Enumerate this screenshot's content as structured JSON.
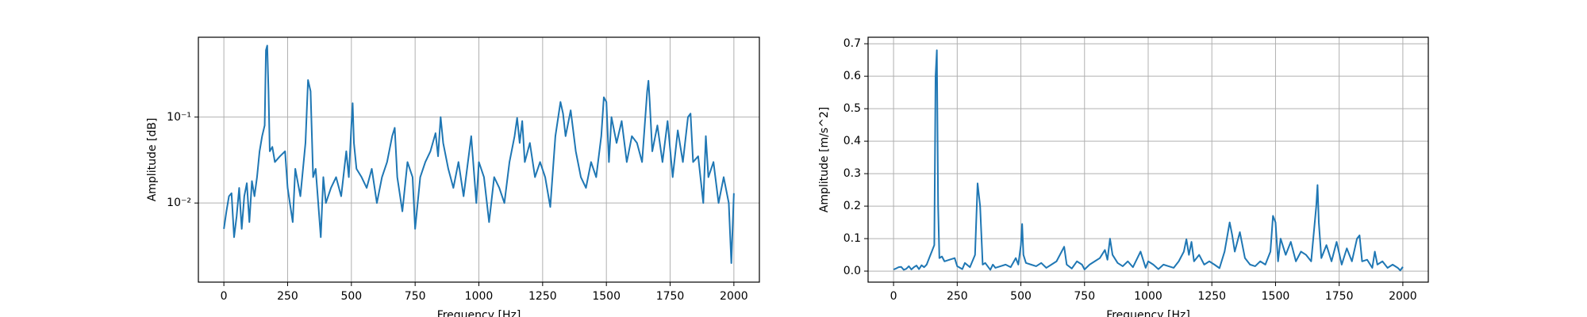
{
  "chart_data": [
    {
      "type": "line",
      "xlabel": "Frequency [Hz]",
      "ylabel": "Amplitude [dB]",
      "log_y": true,
      "grid": true,
      "xlim": [
        -100,
        2100
      ],
      "ylim": [
        0.0012,
        0.85
      ],
      "xticks": [
        0,
        250,
        500,
        750,
        1000,
        1250,
        1500,
        1750,
        2000
      ],
      "yticks": [
        {
          "value": 0.01,
          "label": "10⁻²"
        },
        {
          "value": 0.1,
          "label": "10⁻¹"
        }
      ],
      "series": [
        {
          "color": "#1f77b4",
          "x": [
            0,
            10,
            20,
            30,
            40,
            50,
            60,
            70,
            80,
            90,
            100,
            110,
            120,
            130,
            140,
            150,
            160,
            165,
            170,
            175,
            180,
            190,
            200,
            220,
            240,
            250,
            270,
            280,
            300,
            320,
            330,
            340,
            350,
            360,
            380,
            390,
            400,
            420,
            440,
            460,
            480,
            490,
            500,
            505,
            510,
            520,
            540,
            560,
            580,
            600,
            620,
            640,
            660,
            670,
            680,
            700,
            720,
            740,
            750,
            770,
            790,
            810,
            830,
            840,
            850,
            860,
            880,
            900,
            920,
            940,
            970,
            990,
            1000,
            1020,
            1040,
            1060,
            1080,
            1100,
            1120,
            1140,
            1150,
            1160,
            1170,
            1180,
            1200,
            1220,
            1240,
            1260,
            1280,
            1300,
            1320,
            1330,
            1340,
            1360,
            1380,
            1400,
            1420,
            1440,
            1460,
            1480,
            1490,
            1500,
            1510,
            1520,
            1540,
            1560,
            1580,
            1600,
            1620,
            1640,
            1660,
            1665,
            1670,
            1680,
            1700,
            1720,
            1740,
            1760,
            1780,
            1800,
            1820,
            1830,
            1840,
            1860,
            1880,
            1890,
            1900,
            1920,
            1940,
            1960,
            1980,
            1990,
            2000
          ],
          "values": [
            0.005,
            0.008,
            0.012,
            0.013,
            0.004,
            0.007,
            0.015,
            0.005,
            0.012,
            0.017,
            0.006,
            0.018,
            0.012,
            0.02,
            0.04,
            0.06,
            0.08,
            0.6,
            0.68,
            0.2,
            0.04,
            0.045,
            0.03,
            0.035,
            0.04,
            0.015,
            0.006,
            0.025,
            0.012,
            0.05,
            0.27,
            0.2,
            0.02,
            0.025,
            0.004,
            0.02,
            0.01,
            0.015,
            0.02,
            0.012,
            0.04,
            0.02,
            0.08,
            0.145,
            0.05,
            0.025,
            0.02,
            0.015,
            0.025,
            0.01,
            0.02,
            0.03,
            0.06,
            0.075,
            0.02,
            0.008,
            0.03,
            0.02,
            0.005,
            0.02,
            0.03,
            0.04,
            0.065,
            0.035,
            0.1,
            0.05,
            0.025,
            0.015,
            0.03,
            0.012,
            0.06,
            0.01,
            0.03,
            0.02,
            0.006,
            0.02,
            0.015,
            0.01,
            0.03,
            0.06,
            0.098,
            0.05,
            0.09,
            0.03,
            0.05,
            0.02,
            0.03,
            0.02,
            0.009,
            0.06,
            0.15,
            0.11,
            0.06,
            0.12,
            0.04,
            0.02,
            0.015,
            0.03,
            0.02,
            0.06,
            0.17,
            0.15,
            0.03,
            0.1,
            0.05,
            0.09,
            0.03,
            0.06,
            0.05,
            0.03,
            0.2,
            0.265,
            0.15,
            0.04,
            0.08,
            0.03,
            0.09,
            0.02,
            0.07,
            0.03,
            0.1,
            0.11,
            0.03,
            0.035,
            0.01,
            0.06,
            0.02,
            0.03,
            0.01,
            0.02,
            0.01,
            0.002,
            0.013
          ]
        }
      ]
    },
    {
      "type": "line",
      "xlabel": "Frequency [Hz]",
      "ylabel": "Amplitude [m/s^2]",
      "log_y": false,
      "grid": true,
      "xlim": [
        -100,
        2100
      ],
      "ylim": [
        -0.034,
        0.72
      ],
      "xticks": [
        0,
        250,
        500,
        750,
        1000,
        1250,
        1500,
        1750,
        2000
      ],
      "yticks": [
        {
          "value": 0,
          "label": "0.0"
        },
        0.1,
        0.2,
        0.3,
        0.4,
        0.5,
        0.6,
        0.7
      ],
      "series": [
        {
          "color": "#1f77b4",
          "x": [
            0,
            10,
            20,
            30,
            40,
            50,
            60,
            70,
            80,
            90,
            100,
            110,
            120,
            130,
            140,
            150,
            160,
            165,
            170,
            175,
            180,
            190,
            200,
            220,
            240,
            250,
            270,
            280,
            300,
            320,
            330,
            340,
            350,
            360,
            380,
            390,
            400,
            420,
            440,
            460,
            480,
            490,
            500,
            505,
            510,
            520,
            540,
            560,
            580,
            600,
            620,
            640,
            660,
            670,
            680,
            700,
            720,
            740,
            750,
            770,
            790,
            810,
            830,
            840,
            850,
            860,
            880,
            900,
            920,
            940,
            970,
            990,
            1000,
            1020,
            1040,
            1060,
            1080,
            1100,
            1120,
            1140,
            1150,
            1160,
            1170,
            1180,
            1200,
            1220,
            1240,
            1260,
            1280,
            1300,
            1320,
            1330,
            1340,
            1360,
            1380,
            1400,
            1420,
            1440,
            1460,
            1480,
            1490,
            1500,
            1510,
            1520,
            1540,
            1560,
            1580,
            1600,
            1620,
            1640,
            1660,
            1665,
            1670,
            1680,
            1700,
            1720,
            1740,
            1760,
            1780,
            1800,
            1820,
            1830,
            1840,
            1860,
            1880,
            1890,
            1900,
            1920,
            1940,
            1960,
            1980,
            1990,
            2000
          ],
          "values": [
            0.005,
            0.008,
            0.012,
            0.013,
            0.004,
            0.007,
            0.015,
            0.005,
            0.012,
            0.017,
            0.006,
            0.018,
            0.012,
            0.02,
            0.04,
            0.06,
            0.08,
            0.6,
            0.68,
            0.2,
            0.04,
            0.045,
            0.03,
            0.035,
            0.04,
            0.015,
            0.006,
            0.025,
            0.012,
            0.05,
            0.27,
            0.2,
            0.02,
            0.025,
            0.004,
            0.02,
            0.01,
            0.015,
            0.02,
            0.012,
            0.04,
            0.02,
            0.08,
            0.145,
            0.05,
            0.025,
            0.02,
            0.015,
            0.025,
            0.01,
            0.02,
            0.03,
            0.06,
            0.075,
            0.02,
            0.008,
            0.03,
            0.02,
            0.005,
            0.02,
            0.03,
            0.04,
            0.065,
            0.035,
            0.1,
            0.05,
            0.025,
            0.015,
            0.03,
            0.012,
            0.06,
            0.01,
            0.03,
            0.02,
            0.006,
            0.02,
            0.015,
            0.01,
            0.03,
            0.06,
            0.098,
            0.05,
            0.09,
            0.03,
            0.05,
            0.02,
            0.03,
            0.02,
            0.009,
            0.06,
            0.15,
            0.11,
            0.06,
            0.12,
            0.04,
            0.02,
            0.015,
            0.03,
            0.02,
            0.06,
            0.17,
            0.15,
            0.03,
            0.1,
            0.05,
            0.09,
            0.03,
            0.06,
            0.05,
            0.03,
            0.2,
            0.265,
            0.15,
            0.04,
            0.08,
            0.03,
            0.09,
            0.02,
            0.07,
            0.03,
            0.1,
            0.11,
            0.03,
            0.035,
            0.01,
            0.06,
            0.02,
            0.03,
            0.01,
            0.02,
            0.01,
            0.002,
            0.013
          ]
        }
      ]
    }
  ]
}
